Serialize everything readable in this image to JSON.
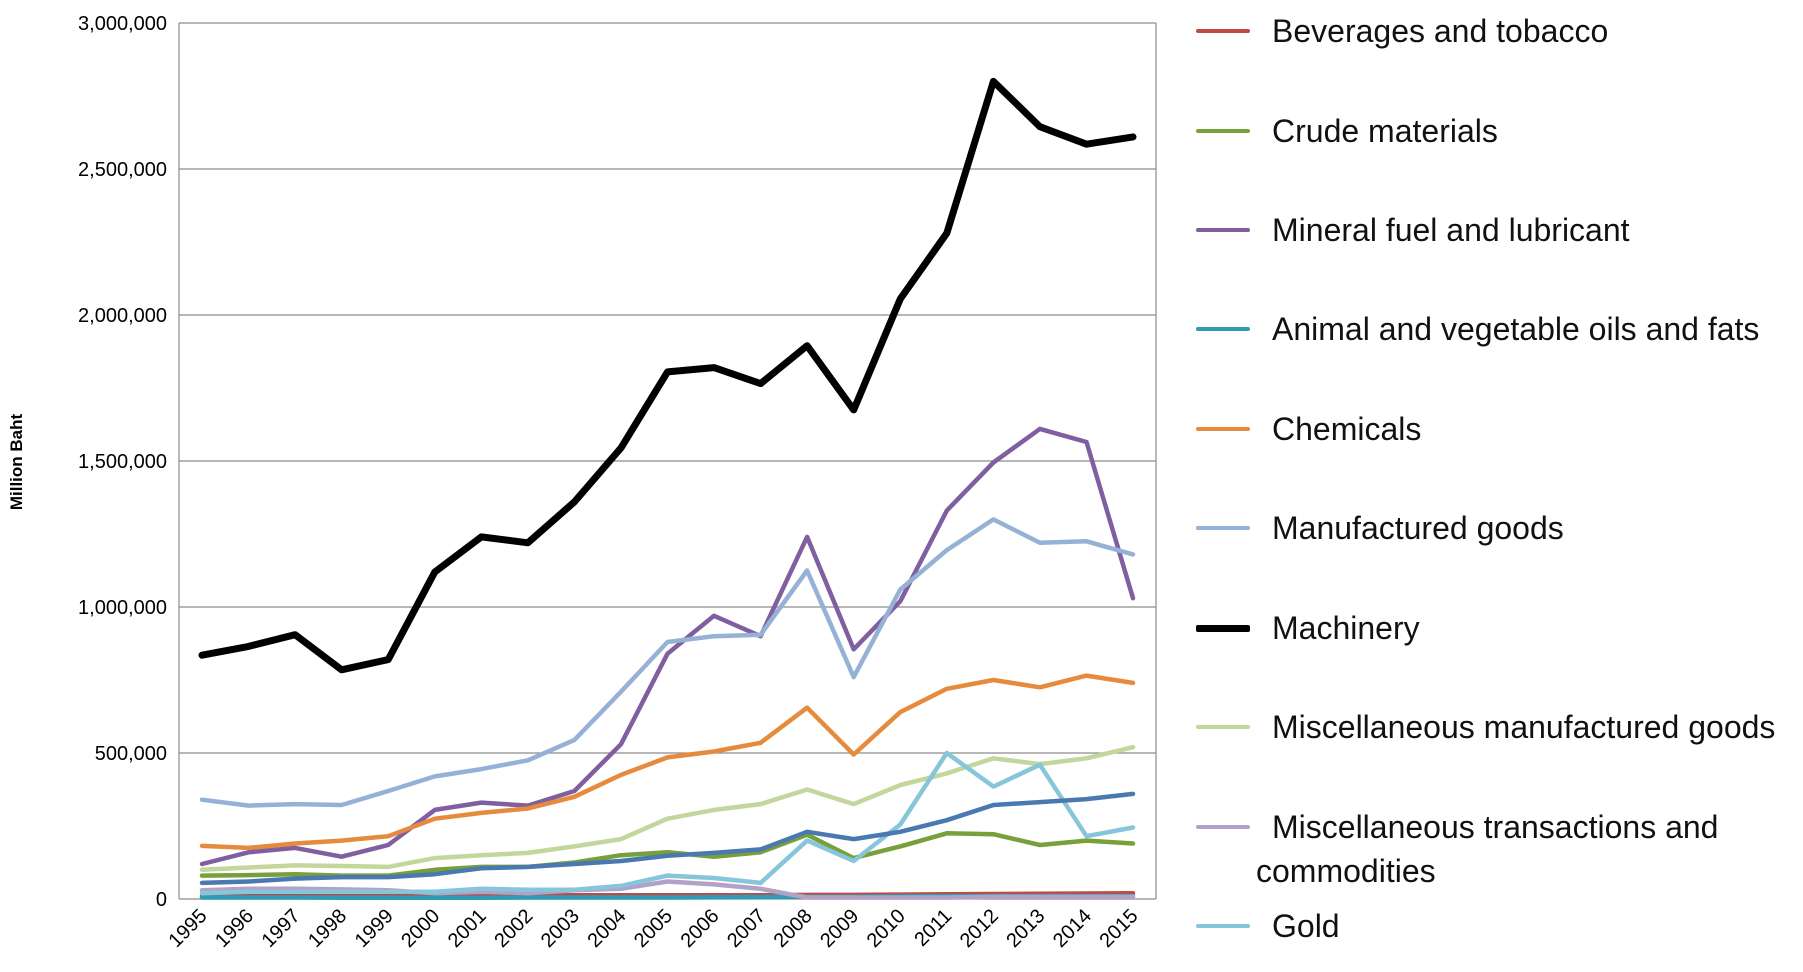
{
  "chart_data": {
    "type": "line",
    "y_label": "Million Baht",
    "categories": [
      "1995",
      "1996",
      "1997",
      "1998",
      "1999",
      "2000",
      "2001",
      "2002",
      "2003",
      "2004",
      "2005",
      "2006",
      "2007",
      "2008",
      "2009",
      "2010",
      "2011",
      "2012",
      "2013",
      "2014",
      "2015"
    ],
    "ylim": [
      0,
      3000000
    ],
    "yticks": [
      0,
      {
        "value": 500000,
        "label": "500,000"
      },
      {
        "value": 1000000,
        "label": "1,000,000"
      },
      {
        "value": 1500000,
        "label": "1,500,000"
      },
      {
        "value": 2000000,
        "label": "2,000,000"
      },
      {
        "value": 2500000,
        "label": "2,500,000"
      },
      {
        "value": 3000000,
        "label": "3,000,000"
      }
    ],
    "grid": true,
    "legend": "right",
    "series": [
      {
        "name": "Beverages and tobacco",
        "color": "#be4b48",
        "values": [
          10000,
          10000,
          10000,
          10000,
          10000,
          10000,
          12000,
          12000,
          13000,
          13000,
          13000,
          13000,
          13000,
          14000,
          14000,
          15000,
          16000,
          17000,
          18000,
          19000,
          20000
        ]
      },
      {
        "name": "Crude materials",
        "color": "#77a03a",
        "values": [
          80000,
          82000,
          85000,
          80000,
          80000,
          100000,
          110000,
          110000,
          125000,
          150000,
          160000,
          145000,
          160000,
          220000,
          140000,
          180000,
          225000,
          222000,
          185000,
          200000,
          190000
        ]
      },
      {
        "name": "Mineral fuel and lubricant",
        "color": "#7f5f9f",
        "values": [
          120000,
          160000,
          175000,
          145000,
          185000,
          305000,
          330000,
          320000,
          370000,
          530000,
          840000,
          970000,
          900000,
          1240000,
          855000,
          1020000,
          1330000,
          1495000,
          1610000,
          1565000,
          1030000
        ]
      },
      {
        "name": "Animal and vegetable oils and fats",
        "color": "#2e9cb4",
        "values": [
          5000,
          5000,
          5000,
          4000,
          4000,
          4000,
          4000,
          5000,
          5000,
          5000,
          5000,
          6000,
          7000,
          8000,
          8000,
          9000,
          10000,
          10000,
          10000,
          10000,
          10000
        ]
      },
      {
        "name": "Chemicals",
        "color": "#e68a3e",
        "values": [
          182000,
          175000,
          190000,
          200000,
          215000,
          275000,
          295000,
          310000,
          350000,
          425000,
          485000,
          505000,
          535000,
          655000,
          495000,
          640000,
          720000,
          750000,
          725000,
          765000,
          740000
        ]
      },
      {
        "name": "Manufactured goods",
        "color": "#95b1d6",
        "values": [
          340000,
          320000,
          325000,
          322000,
          370000,
          420000,
          445000,
          475000,
          545000,
          710000,
          880000,
          900000,
          905000,
          1125000,
          760000,
          1060000,
          1195000,
          1300000,
          1220000,
          1225000,
          1180000
        ]
      },
      {
        "name": "Machinery",
        "color": "#000000",
        "width": 7,
        "values": [
          835000,
          865000,
          905000,
          785000,
          820000,
          1120000,
          1240000,
          1220000,
          1360000,
          1545000,
          1805000,
          1820000,
          1765000,
          1895000,
          1675000,
          2055000,
          2280000,
          2800000,
          2645000,
          2585000,
          2610000
        ]
      },
      {
        "name": "Miscellaneous manufactured goods",
        "color": "#c3d69b",
        "values": [
          100000,
          108000,
          115000,
          113000,
          110000,
          140000,
          150000,
          158000,
          180000,
          205000,
          275000,
          305000,
          325000,
          375000,
          325000,
          390000,
          430000,
          482000,
          462000,
          482000,
          520000
        ]
      },
      {
        "name": "Miscellaneous transactions and commodities",
        "color": "#b3a2c7",
        "values": [
          30000,
          35000,
          35000,
          33000,
          30000,
          20000,
          25000,
          20000,
          30000,
          35000,
          60000,
          50000,
          35000,
          5000,
          5000,
          5000,
          5000,
          8000,
          8000,
          8000,
          8000
        ]
      },
      {
        "name": "Gold",
        "color": "#86c5da",
        "values": [
          20000,
          25000,
          25000,
          25000,
          25000,
          25000,
          35000,
          32000,
          32000,
          45000,
          80000,
          72000,
          55000,
          200000,
          130000,
          255000,
          500000,
          385000,
          460000,
          215000,
          245000
        ]
      },
      {
        "color": "#4a78b0",
        "values": [
          55000,
          60000,
          70000,
          75000,
          75000,
          85000,
          105000,
          110000,
          120000,
          130000,
          148000,
          158000,
          170000,
          230000,
          205000,
          230000,
          270000,
          322000,
          332000,
          342000,
          360000
        ]
      }
    ]
  }
}
